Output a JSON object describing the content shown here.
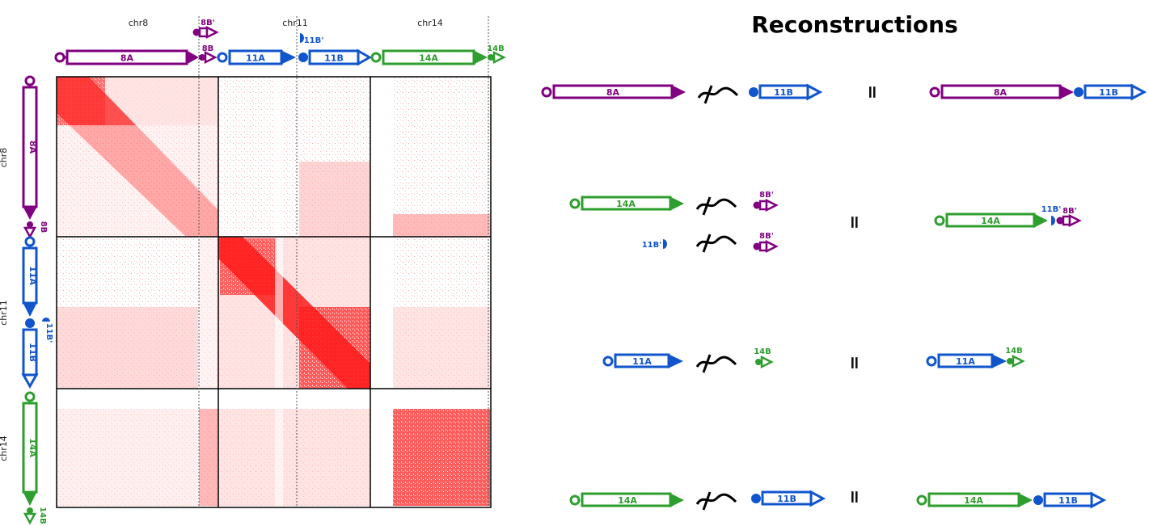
{
  "title": "Reconstructions",
  "colors": {
    "chr8": "#800080",
    "chr11": "#1155cc",
    "chr14": "#2e9e2e",
    "heat": "#ff0000",
    "grid": "#000000"
  },
  "chromosomes": {
    "chr8": "chr8",
    "chr11": "chr11",
    "chr14": "chr14"
  },
  "segments": {
    "s8A": "8A",
    "s8B": "8B",
    "s8Bp": "8B'",
    "s11A": "11A",
    "s11B": "11B",
    "s11Bp": "11B'",
    "s14A": "14A",
    "s14B": "14B"
  },
  "equals": "="
}
